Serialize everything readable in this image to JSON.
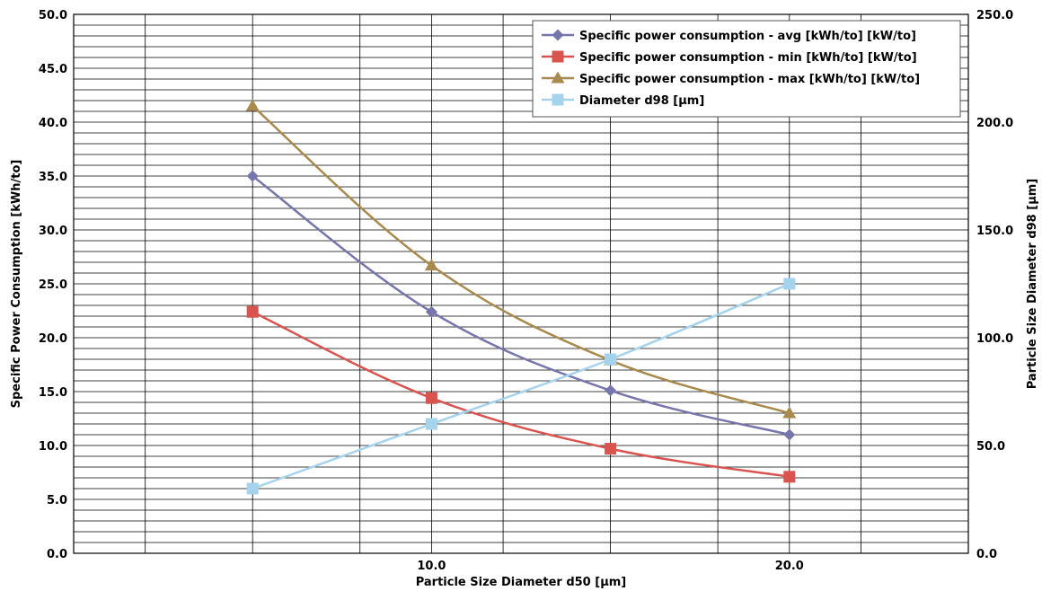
{
  "chart_data": {
    "type": "line",
    "x_axis": {
      "label": "Particle Size Diameter d50 [µm]",
      "range": [
        0,
        25
      ],
      "labeled_ticks": [
        10.0,
        20.0
      ],
      "tick_labels": [
        "10.0",
        "20.0"
      ],
      "minor_ticks": [
        2,
        5,
        8,
        12,
        15,
        18,
        22
      ]
    },
    "y_axis_left": {
      "label": "Specific Power Consumption [kWh/to]",
      "range": [
        0,
        50
      ],
      "tick_labels": [
        "0.0",
        "5.0",
        "10.0",
        "15.0",
        "20.0",
        "25.0",
        "30.0",
        "35.0",
        "40.0",
        "45.0",
        "50.0"
      ]
    },
    "y_axis_right": {
      "label": "Particle Size Diameter d98 [µm]",
      "range": [
        0,
        250
      ],
      "tick_labels": [
        "0.0",
        "50.0",
        "100.0",
        "150.0",
        "200.0",
        "250.0"
      ]
    },
    "grid": true,
    "legend_position": "top-right",
    "series": [
      {
        "name": "Specific power consumption - avg [kWh/to] [kW/to]",
        "axis": "left",
        "color": "#7676ac",
        "marker": "diamond",
        "x": [
          5,
          10,
          15,
          20
        ],
        "values": [
          35.0,
          22.4,
          15.1,
          11.0
        ]
      },
      {
        "name": "Specific power consumption - min [kWh/to] [kW/to]",
        "axis": "left",
        "color": "#d9534f",
        "marker": "square",
        "x": [
          5,
          10,
          15,
          20
        ],
        "values": [
          22.4,
          14.4,
          9.7,
          7.1
        ]
      },
      {
        "name": "Specific power consumption - max [kWh/to] [kW/to]",
        "axis": "left",
        "color": "#a8894e",
        "marker": "triangle",
        "x": [
          5,
          10,
          15,
          20
        ],
        "values": [
          41.5,
          26.7,
          17.9,
          13.0
        ]
      },
      {
        "name": "Diameter d98 [µm]",
        "axis": "right",
        "color": "#a6d3ec",
        "marker": "square",
        "x": [
          5,
          10,
          15,
          20
        ],
        "values": [
          30,
          60,
          90,
          125
        ]
      }
    ]
  }
}
